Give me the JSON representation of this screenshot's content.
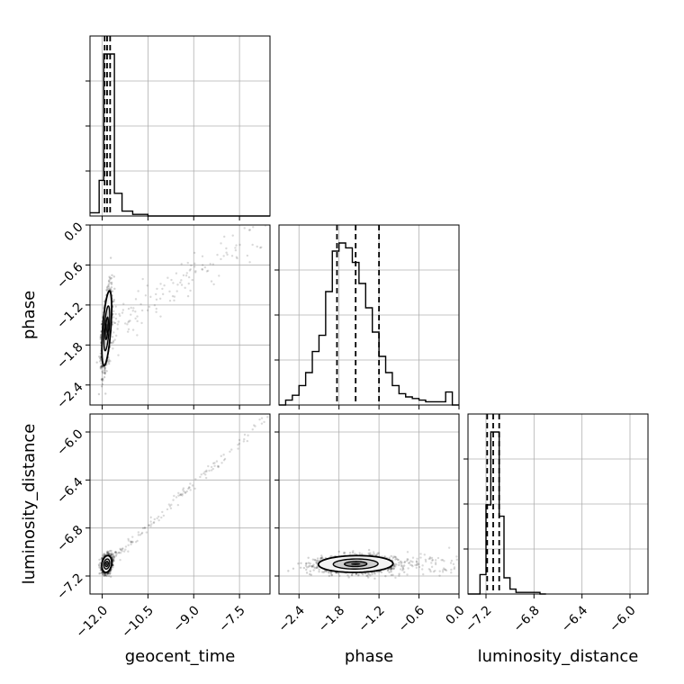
{
  "chart_data": {
    "type": "corner",
    "parameters": [
      "geocent_time",
      "phase",
      "luminosity_distance"
    ],
    "axis_labels": {
      "x": [
        "geocent_time",
        "phase",
        "luminosity_distance"
      ],
      "y": [
        "",
        "phase",
        "luminosity_distance"
      ]
    },
    "grid": true,
    "ranges": {
      "geocent_time": [
        -12.4,
        -6.5
      ],
      "phase": [
        -2.7,
        0.0
      ],
      "luminosity_distance": [
        -7.35,
        -5.85
      ]
    },
    "ticks": {
      "geocent_time": {
        "values": [
          -12.0,
          -10.5,
          -9.0,
          -7.5
        ],
        "labels": [
          "−12.0",
          "−10.5",
          "−9.0",
          "−7.5"
        ]
      },
      "phase": {
        "values": [
          -2.4,
          -1.8,
          -1.2,
          -0.6,
          0.0
        ],
        "labels": [
          "−2.4",
          "−1.8",
          "−1.2",
          "−0.6",
          "0.0"
        ]
      },
      "luminosity_distance": {
        "values": [
          -7.2,
          -6.8,
          -6.4,
          -6.0
        ],
        "labels": [
          "−7.2",
          "−6.8",
          "−6.4",
          "−6.0"
        ]
      }
    },
    "histograms": {
      "geocent_time": {
        "bin_edges": [
          -12.4,
          -12.1,
          -11.95,
          -11.78,
          -11.6,
          -11.35,
          -11.0,
          -10.5,
          -6.5
        ],
        "counts": [
          0.02,
          0.22,
          1.0,
          1.0,
          0.14,
          0.03,
          0.01,
          0.0
        ],
        "quantiles": [
          -11.92,
          -11.84,
          -11.74
        ]
      },
      "phase": {
        "bin_edges": [
          -2.7,
          -2.6,
          -2.5,
          -2.4,
          -2.3,
          -2.2,
          -2.1,
          -2.0,
          -1.9,
          -1.8,
          -1.7,
          -1.6,
          -1.5,
          -1.4,
          -1.3,
          -1.2,
          -1.1,
          -1.0,
          -0.9,
          -0.8,
          -0.7,
          -0.6,
          -0.5,
          -0.4,
          -0.3,
          -0.2,
          -0.1,
          0.0
        ],
        "counts": [
          0.0,
          0.03,
          0.06,
          0.12,
          0.2,
          0.33,
          0.43,
          0.7,
          0.95,
          1.0,
          0.97,
          0.88,
          0.75,
          0.6,
          0.45,
          0.3,
          0.2,
          0.12,
          0.07,
          0.05,
          0.04,
          0.03,
          0.02,
          0.02,
          0.02,
          0.08,
          0.0
        ],
        "quantiles": [
          -1.83,
          -1.55,
          -1.2
        ]
      },
      "luminosity_distance": {
        "bin_edges": [
          -7.35,
          -7.25,
          -7.2,
          -7.16,
          -7.12,
          -7.09,
          -7.05,
          -7.0,
          -6.95,
          -6.75,
          -6.7
        ],
        "counts": [
          0.0,
          0.12,
          0.55,
          1.0,
          1.0,
          0.48,
          0.1,
          0.03,
          0.01,
          0.0
        ],
        "quantiles": [
          -7.19,
          -7.14,
          -7.09
        ]
      }
    },
    "contours_2d": [
      {
        "x": "geocent_time",
        "y": "phase",
        "center": [
          -11.85,
          -1.55
        ],
        "sigma": [
          0.08,
          0.28
        ],
        "correlation": 0.55
      },
      {
        "x": "geocent_time",
        "y": "luminosity_distance",
        "center": [
          -11.85,
          -7.1
        ],
        "sigma": [
          0.08,
          0.035
        ],
        "correlation": 0.2
      },
      {
        "x": "phase",
        "y": "luminosity_distance",
        "center": [
          -1.55,
          -7.1
        ],
        "sigma": [
          0.28,
          0.035
        ],
        "correlation": 0.05
      }
    ],
    "colors": {
      "hist": "#000000",
      "grid": "#b0b0b0",
      "points": "#000000"
    }
  }
}
